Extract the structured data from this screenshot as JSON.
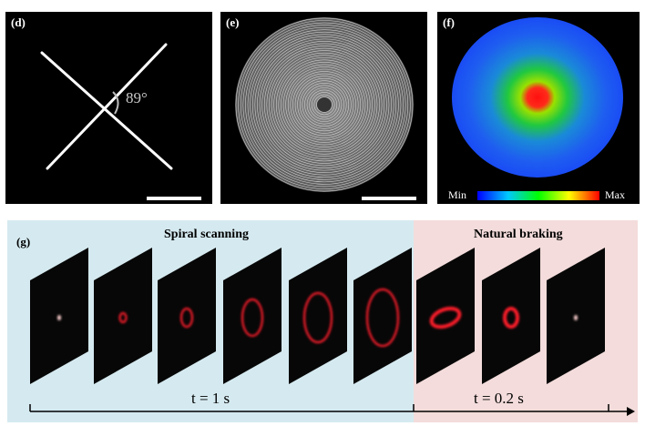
{
  "panel_d": {
    "label": "(d)",
    "angle_text": "89°"
  },
  "panel_e": {
    "label": "(e)"
  },
  "panel_f": {
    "label": "(f)",
    "colorbar_min": "Min",
    "colorbar_max": "Max",
    "colormap": [
      "#0000ff",
      "#00c8ff",
      "#00ff00",
      "#ffff00",
      "#ff0000"
    ]
  },
  "panel_g": {
    "label": "(g)",
    "section_left": "Spiral scanning",
    "section_right": "Natural braking",
    "time_left": "t = 1 s",
    "time_right": "t = 0.2 s",
    "bg_left": "#d5eaf0",
    "bg_right": "#f3dcdb",
    "accent": "#ff1a2a"
  }
}
